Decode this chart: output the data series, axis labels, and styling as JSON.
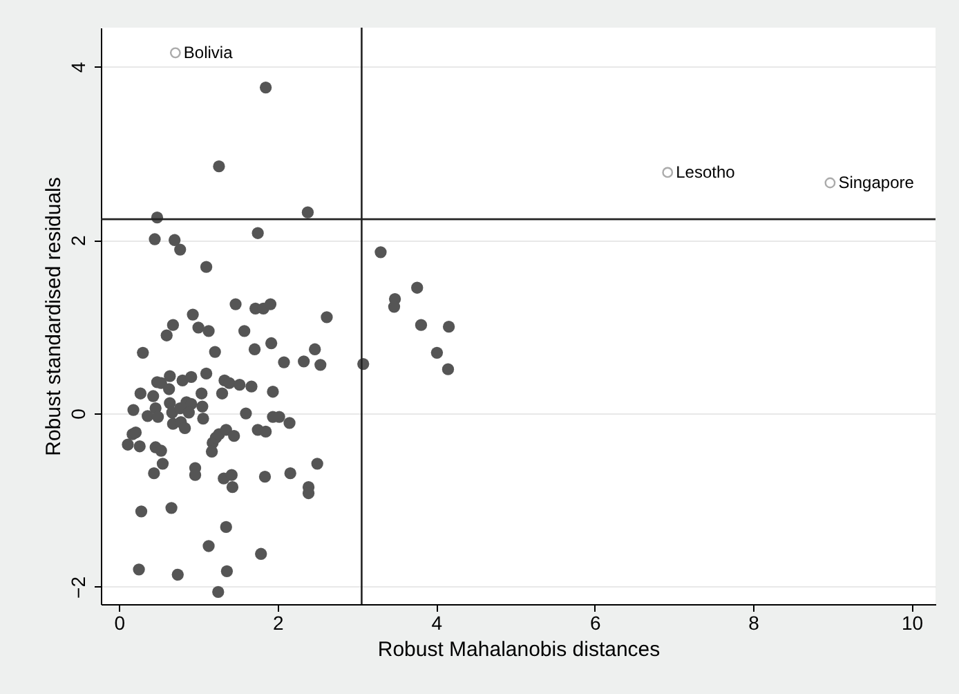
{
  "chart_data": {
    "type": "scatter",
    "xlabel": "Robust Mahalanobis distances",
    "ylabel": "Robust standardised residuals",
    "xlim": [
      -0.23,
      10.3
    ],
    "ylim": [
      -2.2,
      4.45
    ],
    "xticks": [
      0,
      2,
      4,
      6,
      8,
      10
    ],
    "yticks": [
      -2,
      0,
      2,
      4
    ],
    "grid": "y",
    "marker": "circle",
    "series": [
      {
        "color": "#555555",
        "x": [
          1.85,
          1.26,
          0.48,
          2.38,
          0.45,
          0.7,
          0.77,
          1.75,
          1.1,
          1.47,
          1.72,
          1.82,
          1.91,
          2.62,
          0.93,
          0.68,
          0.6,
          1.0,
          1.13,
          1.58,
          0.3,
          1.21,
          1.71,
          1.92,
          2.47,
          2.08,
          2.33,
          2.54,
          3.08,
          0.48,
          0.64,
          0.53,
          0.63,
          0.8,
          0.91,
          1.1,
          1.33,
          1.39,
          1.3,
          1.52,
          1.67,
          1.94,
          0.27,
          0.43,
          1.04,
          0.18,
          0.36,
          0.46,
          0.49,
          0.64,
          0.67,
          0.77,
          0.85,
          0.91,
          0.88,
          1.05,
          1.06,
          0.68,
          0.78,
          0.83,
          1.6,
          1.94,
          2.02,
          2.15,
          1.75,
          1.85,
          0.17,
          0.21,
          0.11,
          0.26,
          0.46,
          0.53,
          0.55,
          0.44,
          1.18,
          1.22,
          1.26,
          1.35,
          1.45,
          1.17,
          0.96,
          0.96,
          1.32,
          1.42,
          1.43,
          1.84,
          2.16,
          2.5,
          2.39,
          2.39,
          0.28,
          0.66,
          1.35,
          1.13,
          1.79,
          0.25,
          0.74,
          1.36,
          1.25,
          3.3,
          3.76,
          3.48,
          3.47,
          3.81,
          4.16,
          4.01,
          4.15
        ],
        "values": [
          3.76,
          2.85,
          2.26,
          2.32,
          2.01,
          2.0,
          1.89,
          2.08,
          1.69,
          1.26,
          1.21,
          1.21,
          1.26,
          1.11,
          1.14,
          1.02,
          0.9,
          0.99,
          0.95,
          0.95,
          0.7,
          0.71,
          0.74,
          0.81,
          0.74,
          0.59,
          0.6,
          0.56,
          0.57,
          0.36,
          0.43,
          0.35,
          0.28,
          0.38,
          0.42,
          0.46,
          0.38,
          0.35,
          0.23,
          0.33,
          0.31,
          0.25,
          0.23,
          0.2,
          0.23,
          0.04,
          -0.03,
          0.06,
          -0.04,
          0.12,
          0.01,
          0.06,
          0.13,
          0.11,
          0.01,
          0.08,
          -0.06,
          -0.12,
          -0.1,
          -0.17,
          0.0,
          -0.04,
          -0.04,
          -0.11,
          -0.19,
          -0.21,
          -0.24,
          -0.22,
          -0.36,
          -0.38,
          -0.39,
          -0.43,
          -0.58,
          -0.69,
          -0.34,
          -0.28,
          -0.24,
          -0.19,
          -0.26,
          -0.44,
          -0.63,
          -0.71,
          -0.75,
          -0.71,
          -0.85,
          -0.73,
          -0.69,
          -0.58,
          -0.85,
          -0.92,
          -1.13,
          -1.09,
          -1.31,
          -1.53,
          -1.62,
          -1.8,
          -1.86,
          -1.82,
          -2.06,
          1.86,
          1.45,
          1.32,
          1.23,
          1.02,
          1.0,
          0.7,
          0.51
        ]
      }
    ],
    "annotations": [
      {
        "text": "Bolivia",
        "x": 0.71,
        "y": 4.16
      },
      {
        "text": "Lesotho",
        "x": 6.92,
        "y": 2.78
      },
      {
        "text": "Singapore",
        "x": 8.97,
        "y": 2.66
      }
    ],
    "ref_lines": [
      {
        "axis": "x",
        "value": 3.06,
        "color": "#222222"
      },
      {
        "axis": "y",
        "value": 2.24,
        "color": "#222222"
      }
    ]
  }
}
